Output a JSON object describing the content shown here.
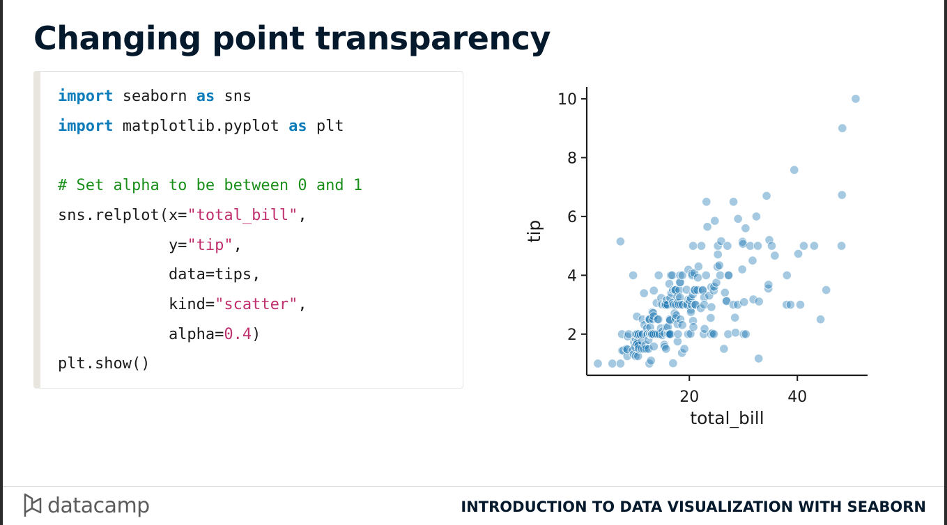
{
  "slide": {
    "title": "Changing point transparency",
    "footer": {
      "logo_text": "datacamp",
      "course_title": "INTRODUCTION TO DATA VISUALIZATION WITH SEABORN"
    }
  },
  "code": {
    "lines": [
      [
        {
          "t": "import",
          "c": "kw"
        },
        {
          "t": " seaborn "
        },
        {
          "t": "as",
          "c": "kw"
        },
        {
          "t": " sns"
        }
      ],
      [
        {
          "t": "import",
          "c": "kw"
        },
        {
          "t": " matplotlib.pyplot "
        },
        {
          "t": "as",
          "c": "kw"
        },
        {
          "t": " plt"
        }
      ],
      [],
      [
        {
          "t": "# Set alpha to be between 0 and 1",
          "c": "cm"
        }
      ],
      [
        {
          "t": "sns.relplot(x="
        },
        {
          "t": "\"total_bill\"",
          "c": "st"
        },
        {
          "t": ","
        }
      ],
      [
        {
          "t": "            y="
        },
        {
          "t": "\"tip\"",
          "c": "st"
        },
        {
          "t": ","
        }
      ],
      [
        {
          "t": "            data=tips,"
        }
      ],
      [
        {
          "t": "            kind="
        },
        {
          "t": "\"scatter\"",
          "c": "st"
        },
        {
          "t": ","
        }
      ],
      [
        {
          "t": "            alpha="
        },
        {
          "t": "0.4",
          "c": "nm"
        },
        {
          "t": ")"
        }
      ],
      [
        {
          "t": "plt.show()"
        }
      ]
    ]
  },
  "chart_data": {
    "type": "scatter",
    "xlabel": "total_bill",
    "ylabel": "tip",
    "xticks": [
      20,
      40
    ],
    "yticks": [
      2,
      4,
      6,
      8,
      10
    ],
    "xlim": [
      1,
      53
    ],
    "ylim": [
      0.6,
      10.4
    ],
    "point_color": "#1f77b4",
    "alpha": 0.4,
    "points": [
      [
        3.07,
        1.0
      ],
      [
        5.75,
        1.0
      ],
      [
        7.25,
        1.0
      ],
      [
        7.25,
        5.15
      ],
      [
        7.51,
        2.0
      ],
      [
        7.56,
        1.44
      ],
      [
        7.74,
        1.44
      ],
      [
        8.35,
        1.5
      ],
      [
        8.51,
        1.25
      ],
      [
        8.52,
        1.48
      ],
      [
        8.58,
        1.92
      ],
      [
        8.77,
        2.0
      ],
      [
        9.55,
        1.45
      ],
      [
        9.6,
        4.0
      ],
      [
        9.68,
        1.32
      ],
      [
        9.78,
        1.73
      ],
      [
        9.94,
        1.56
      ],
      [
        10.07,
        1.25
      ],
      [
        10.07,
        1.83
      ],
      [
        10.09,
        2.0
      ],
      [
        10.27,
        1.71
      ],
      [
        10.29,
        2.6
      ],
      [
        10.33,
        1.67
      ],
      [
        10.33,
        2.0
      ],
      [
        10.34,
        1.66
      ],
      [
        10.34,
        2.0
      ],
      [
        10.51,
        1.25
      ],
      [
        10.59,
        1.61
      ],
      [
        10.63,
        2.0
      ],
      [
        10.65,
        1.5
      ],
      [
        11.02,
        1.98
      ],
      [
        11.17,
        1.5
      ],
      [
        11.24,
        1.76
      ],
      [
        11.35,
        2.5
      ],
      [
        11.38,
        2.0
      ],
      [
        11.59,
        1.5
      ],
      [
        11.61,
        3.39
      ],
      [
        11.69,
        2.31
      ],
      [
        11.87,
        1.63
      ],
      [
        12.02,
        1.97
      ],
      [
        12.03,
        1.5
      ],
      [
        12.16,
        2.2
      ],
      [
        12.26,
        2.0
      ],
      [
        12.43,
        1.8
      ],
      [
        12.46,
        1.5
      ],
      [
        12.48,
        2.52
      ],
      [
        12.54,
        2.5
      ],
      [
        12.6,
        1.0
      ],
      [
        12.66,
        2.5
      ],
      [
        12.69,
        2.0
      ],
      [
        12.74,
        2.01
      ],
      [
        12.76,
        2.23
      ],
      [
        12.9,
        1.1
      ],
      [
        13.0,
        2.0
      ],
      [
        13.03,
        2.0
      ],
      [
        13.13,
        2.0
      ],
      [
        13.16,
        2.75
      ],
      [
        13.27,
        2.5
      ],
      [
        13.28,
        2.72
      ],
      [
        13.37,
        2.0
      ],
      [
        13.39,
        2.61
      ],
      [
        13.42,
        1.58
      ],
      [
        13.42,
        3.48
      ],
      [
        13.81,
        2.0
      ],
      [
        13.94,
        3.06
      ],
      [
        14.07,
        2.5
      ],
      [
        14.15,
        2.0
      ],
      [
        14.26,
        2.5
      ],
      [
        14.31,
        4.0
      ],
      [
        14.48,
        2.0
      ],
      [
        14.73,
        2.2
      ],
      [
        14.78,
        3.23
      ],
      [
        14.83,
        3.02
      ],
      [
        15.01,
        2.09
      ],
      [
        15.04,
        1.96
      ],
      [
        15.06,
        3.0
      ],
      [
        15.36,
        1.64
      ],
      [
        15.38,
        3.0
      ],
      [
        15.42,
        1.57
      ],
      [
        15.48,
        2.02
      ],
      [
        15.53,
        3.0
      ],
      [
        15.69,
        1.5
      ],
      [
        15.69,
        3.0
      ],
      [
        15.77,
        2.23
      ],
      [
        15.81,
        3.16
      ],
      [
        15.98,
        2.03
      ],
      [
        15.98,
        3.0
      ],
      [
        16.0,
        2.0
      ],
      [
        16.04,
        2.24
      ],
      [
        16.21,
        2.0
      ],
      [
        16.27,
        2.5
      ],
      [
        16.29,
        3.71
      ],
      [
        16.31,
        2.0
      ],
      [
        16.4,
        2.5
      ],
      [
        16.45,
        2.47
      ],
      [
        16.47,
        3.23
      ],
      [
        16.49,
        2.0
      ],
      [
        16.58,
        4.0
      ],
      [
        16.66,
        3.4
      ],
      [
        16.82,
        4.0
      ],
      [
        16.93,
        3.07
      ],
      [
        16.97,
        3.5
      ],
      [
        16.99,
        1.01
      ],
      [
        17.07,
        3.0
      ],
      [
        17.29,
        2.71
      ],
      [
        17.31,
        3.5
      ],
      [
        17.46,
        2.54
      ],
      [
        17.47,
        3.5
      ],
      [
        17.51,
        3.0
      ],
      [
        17.59,
        2.64
      ],
      [
        17.78,
        3.27
      ],
      [
        17.81,
        2.34
      ],
      [
        17.82,
        1.75
      ],
      [
        17.89,
        2.0
      ],
      [
        17.92,
        3.08
      ],
      [
        18.04,
        3.0
      ],
      [
        18.15,
        3.5
      ],
      [
        18.24,
        3.76
      ],
      [
        18.26,
        3.25
      ],
      [
        18.28,
        4.0
      ],
      [
        18.29,
        3.76
      ],
      [
        18.35,
        2.5
      ],
      [
        18.43,
        3.0
      ],
      [
        18.64,
        1.36
      ],
      [
        18.69,
        2.31
      ],
      [
        18.71,
        4.0
      ],
      [
        18.78,
        3.0
      ],
      [
        19.08,
        1.5
      ],
      [
        19.44,
        3.0
      ],
      [
        19.49,
        3.51
      ],
      [
        19.65,
        3.0
      ],
      [
        19.77,
        2.0
      ],
      [
        19.81,
        4.19
      ],
      [
        19.82,
        3.18
      ],
      [
        20.08,
        3.15
      ],
      [
        20.23,
        2.01
      ],
      [
        20.27,
        2.83
      ],
      [
        20.29,
        2.75
      ],
      [
        20.29,
        3.21
      ],
      [
        20.45,
        3.0
      ],
      [
        20.49,
        4.06
      ],
      [
        20.53,
        4.0
      ],
      [
        20.65,
        3.35
      ],
      [
        20.69,
        2.45
      ],
      [
        20.69,
        5.0
      ],
      [
        20.76,
        2.24
      ],
      [
        20.9,
        3.5
      ],
      [
        20.92,
        4.08
      ],
      [
        21.01,
        3.0
      ],
      [
        21.01,
        3.5
      ],
      [
        21.16,
        3.0
      ],
      [
        21.5,
        3.5
      ],
      [
        21.58,
        3.92
      ],
      [
        21.7,
        4.3
      ],
      [
        22.12,
        2.88
      ],
      [
        22.23,
        5.0
      ],
      [
        22.42,
        3.48
      ],
      [
        22.49,
        3.5
      ],
      [
        22.67,
        2.0
      ],
      [
        22.75,
        3.25
      ],
      [
        22.76,
        3.0
      ],
      [
        22.82,
        2.18
      ],
      [
        23.1,
        4.0
      ],
      [
        23.17,
        6.5
      ],
      [
        23.33,
        5.65
      ],
      [
        23.68,
        3.31
      ],
      [
        23.95,
        2.55
      ],
      [
        24.01,
        2.0
      ],
      [
        24.06,
        3.6
      ],
      [
        24.08,
        2.92
      ],
      [
        24.27,
        2.03
      ],
      [
        24.52,
        3.48
      ],
      [
        24.55,
        2.0
      ],
      [
        24.59,
        3.61
      ],
      [
        24.71,
        5.85
      ],
      [
        25.0,
        3.75
      ],
      [
        25.21,
        4.29
      ],
      [
        25.28,
        5.0
      ],
      [
        25.29,
        4.71
      ],
      [
        25.56,
        4.34
      ],
      [
        25.71,
        4.0
      ],
      [
        25.89,
        5.16
      ],
      [
        26.41,
        1.5
      ],
      [
        26.59,
        3.41
      ],
      [
        26.86,
        3.14
      ],
      [
        26.88,
        3.12
      ],
      [
        27.05,
        5.0
      ],
      [
        27.18,
        2.0
      ],
      [
        27.2,
        4.0
      ],
      [
        27.28,
        4.0
      ],
      [
        28.15,
        3.0
      ],
      [
        28.17,
        6.5
      ],
      [
        28.44,
        2.56
      ],
      [
        28.55,
        2.05
      ],
      [
        28.97,
        3.0
      ],
      [
        29.03,
        5.92
      ],
      [
        29.8,
        4.2
      ],
      [
        29.85,
        5.14
      ],
      [
        29.93,
        5.07
      ],
      [
        30.06,
        2.0
      ],
      [
        30.14,
        3.09
      ],
      [
        30.4,
        5.6
      ],
      [
        30.46,
        2.0
      ],
      [
        31.27,
        5.0
      ],
      [
        31.71,
        4.5
      ],
      [
        31.85,
        3.18
      ],
      [
        32.4,
        6.0
      ],
      [
        32.68,
        5.0
      ],
      [
        32.83,
        1.17
      ],
      [
        32.9,
        3.11
      ],
      [
        34.3,
        6.7
      ],
      [
        34.63,
        3.55
      ],
      [
        34.65,
        3.68
      ],
      [
        34.81,
        5.2
      ],
      [
        35.26,
        5.0
      ],
      [
        35.83,
        4.67
      ],
      [
        38.01,
        3.0
      ],
      [
        38.07,
        4.0
      ],
      [
        38.73,
        3.0
      ],
      [
        39.42,
        7.58
      ],
      [
        40.17,
        4.73
      ],
      [
        40.55,
        3.0
      ],
      [
        41.19,
        5.0
      ],
      [
        43.11,
        5.0
      ],
      [
        44.3,
        2.5
      ],
      [
        45.35,
        3.5
      ],
      [
        48.17,
        5.0
      ],
      [
        48.27,
        6.73
      ],
      [
        48.33,
        9.0
      ],
      [
        50.81,
        10.0
      ]
    ]
  }
}
